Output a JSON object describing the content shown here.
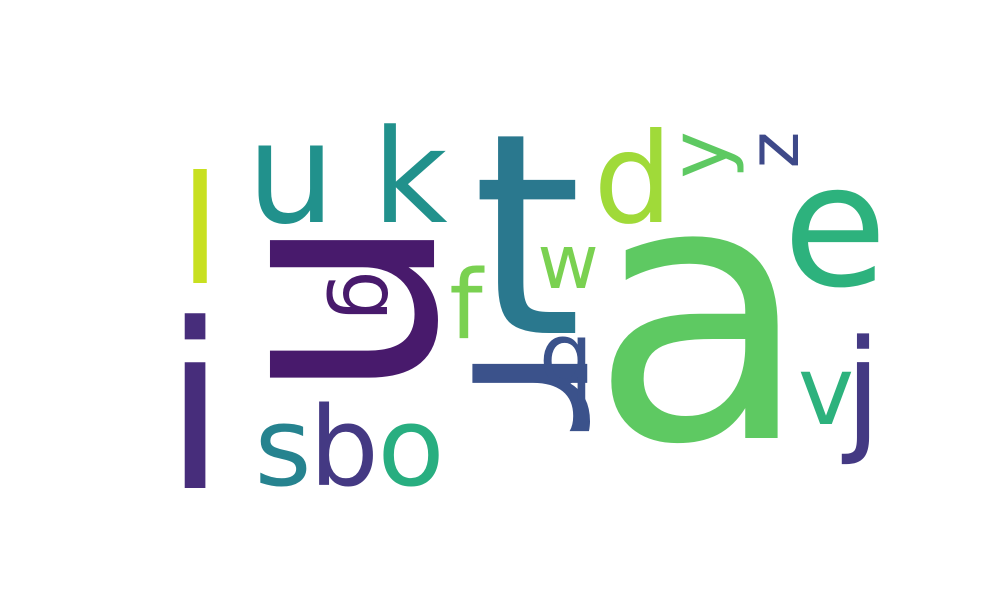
{
  "word_cloud": {
    "background_color": "#ffffff",
    "words": [
      {
        "text": "a",
        "color": "#5ec962"
      },
      {
        "text": "n",
        "color": "#481a6c"
      },
      {
        "text": "t",
        "color": "#2a788e"
      },
      {
        "text": "r",
        "color": "#3b528b"
      },
      {
        "text": "i",
        "color": "#472d7b"
      },
      {
        "text": "e",
        "color": "#2db27d"
      },
      {
        "text": "u",
        "color": "#21918c"
      },
      {
        "text": "l",
        "color": "#c8e020"
      },
      {
        "text": "k",
        "color": "#21918c"
      },
      {
        "text": "d",
        "color": "#a0da39"
      },
      {
        "text": "s",
        "color": "#26838f"
      },
      {
        "text": "b",
        "color": "#443983"
      },
      {
        "text": "o",
        "color": "#28ae80"
      },
      {
        "text": "v",
        "color": "#2db27d"
      },
      {
        "text": "j",
        "color": "#443983"
      },
      {
        "text": "f",
        "color": "#7ad151"
      },
      {
        "text": "w",
        "color": "#7ad151"
      },
      {
        "text": "q",
        "color": "#3b528b"
      },
      {
        "text": "y",
        "color": "#5ec962"
      },
      {
        "text": "z",
        "color": "#3e4989"
      },
      {
        "text": "g",
        "color": "#481a6c"
      }
    ]
  }
}
